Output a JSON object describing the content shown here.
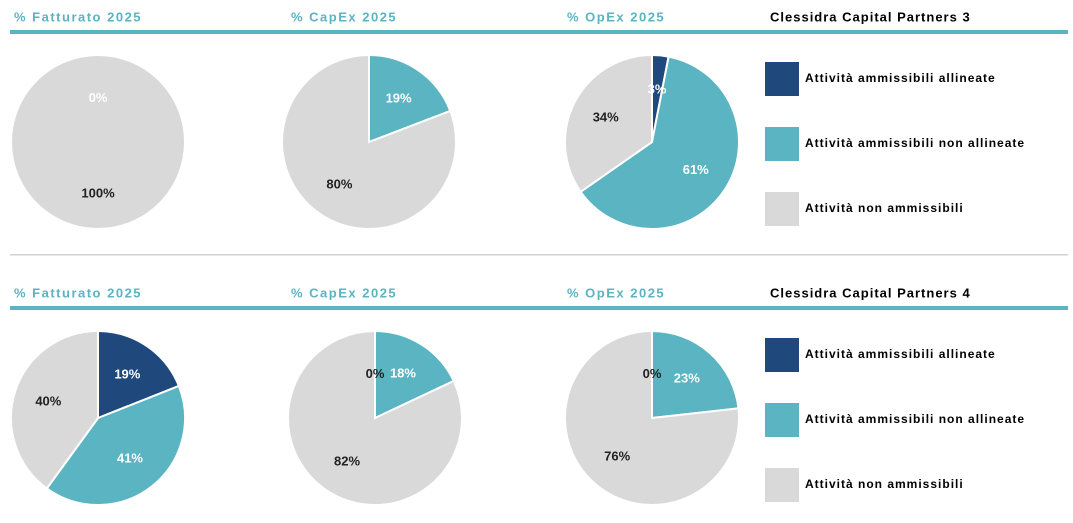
{
  "funds": [
    "Clessidra Capital Partners 3",
    "Clessidra Capital Partners 4"
  ],
  "chart_data": [
    {
      "type": "pie",
      "title": "% Fatturato 2025",
      "categories": [
        "Attività ammissibili allineate",
        "Attività ammissibili non allineate",
        "Attività non ammissibili"
      ],
      "values": [
        0,
        0,
        100
      ],
      "value_labels": [
        "0%",
        null,
        "100%"
      ],
      "colors": [
        "#1f497d",
        "#5ab4c2",
        "#d9d9d9"
      ]
    },
    {
      "type": "pie",
      "title": "% CapEx 2025",
      "categories": [
        "Attività ammissibili allineate",
        "Attività ammissibili non allineate",
        "Attività non ammissibili"
      ],
      "values": [
        0,
        19,
        80
      ],
      "value_labels": [
        null,
        "19%",
        "80%"
      ],
      "colors": [
        "#1f497d",
        "#5ab4c2",
        "#d9d9d9"
      ]
    },
    {
      "type": "pie",
      "title": "% OpEx 2025",
      "categories": [
        "Attività ammissibili allineate",
        "Attività ammissibili non allineate",
        "Attività non ammissibili"
      ],
      "values": [
        3,
        61,
        34
      ],
      "value_labels": [
        "3%",
        "61%",
        "34%"
      ],
      "colors": [
        "#1f497d",
        "#5ab4c2",
        "#d9d9d9"
      ]
    },
    {
      "type": "pie",
      "title": "% Fatturato 2025",
      "categories": [
        "Attività ammissibili allineate",
        "Attività ammissibili non allineate",
        "Attività non ammissibili"
      ],
      "values": [
        19,
        41,
        40
      ],
      "value_labels": [
        "19%",
        "41%",
        "40%"
      ],
      "colors": [
        "#1f497d",
        "#5ab4c2",
        "#d9d9d9"
      ]
    },
    {
      "type": "pie",
      "title": "% CapEx 2025",
      "categories": [
        "Attività ammissibili allineate",
        "Attività ammissibili non allineate",
        "Attività non ammissibili"
      ],
      "values": [
        0,
        18,
        82
      ],
      "value_labels": [
        "0%",
        "18%",
        "82%"
      ],
      "colors": [
        "#1f497d",
        "#5ab4c2",
        "#d9d9d9"
      ]
    },
    {
      "type": "pie",
      "title": "% OpEx 2025",
      "categories": [
        "Attività ammissibili allineate",
        "Attività ammissibili non allineate",
        "Attività non ammissibili"
      ],
      "values": [
        0,
        23,
        76
      ],
      "value_labels": [
        "0%",
        "23%",
        "76%"
      ],
      "colors": [
        "#1f497d",
        "#5ab4c2",
        "#d9d9d9"
      ]
    }
  ]
}
